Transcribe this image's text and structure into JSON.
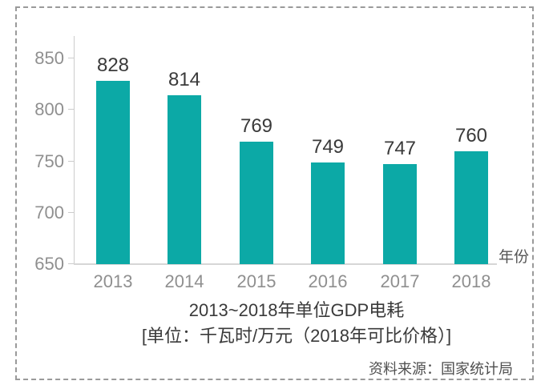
{
  "chart_data": {
    "type": "bar",
    "title": "2013~2018年单位GDP电耗",
    "subtitle": "[单位：千瓦时/万元（2018年可比价格）]",
    "source": "资料来源：国家统计局",
    "xlabel": "年份",
    "ylabel": "",
    "categories": [
      "2013",
      "2014",
      "2015",
      "2016",
      "2017",
      "2018"
    ],
    "values": [
      828,
      814,
      769,
      749,
      747,
      760
    ],
    "y_ticks": [
      850,
      800,
      750,
      700,
      650
    ],
    "ylim": [
      650,
      870
    ],
    "grid": false,
    "legend": "none",
    "bar_color": "#0CA9A6"
  },
  "colors": {
    "bar": "#0CA9A6",
    "axis_line": "#CCCCCC",
    "tick_label": "#8F8F8F",
    "value_label": "#3A3A3A",
    "title_text": "#3A3A3A",
    "source_text": "#4F4F4F",
    "border_dash": "#9A9A9A",
    "background": "#FFFFFF"
  }
}
